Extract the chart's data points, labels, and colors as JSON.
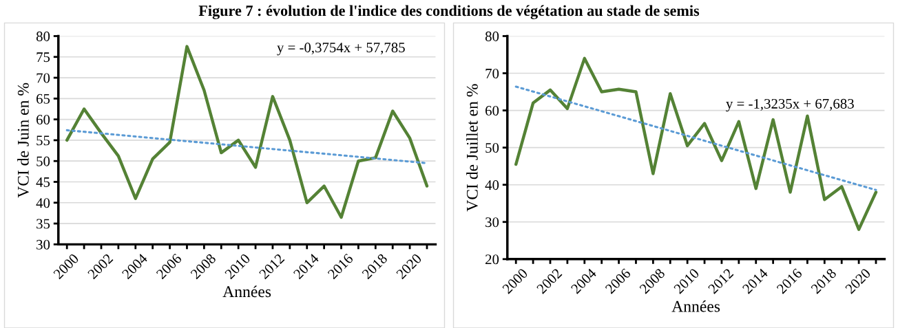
{
  "chart_data": [
    {
      "type": "line",
      "title": "Figure 7 : évolution de l'indice des conditions de végétation au stade de semis",
      "xlabel": "Années",
      "ylabel": "VCI de Juin en %",
      "categories": [
        "2000",
        null,
        "2002",
        null,
        "2004",
        null,
        "2006",
        null,
        "2008",
        null,
        "2010",
        null,
        "2012",
        null,
        "2014",
        null,
        "2016",
        null,
        "2018",
        null,
        "2020",
        null
      ],
      "series": [
        {
          "color": "#548235",
          "values": [
            55,
            62.5,
            56.7,
            51.2,
            41,
            50.5,
            54.5,
            77.5,
            67,
            52,
            55,
            48.5,
            65.5,
            55,
            40,
            44,
            36.5,
            50,
            50.8,
            62,
            55.5,
            44
          ]
        },
        {
          "type": "line",
          "color": "#5b9bd5",
          "line_style": "dotted",
          "values": [
            57.4,
            null,
            null,
            null,
            null,
            null,
            null,
            null,
            null,
            null,
            null,
            null,
            null,
            null,
            null,
            null,
            null,
            null,
            null,
            null,
            null,
            49.5
          ]
        }
      ],
      "ylim": [
        30,
        80
      ],
      "yticks": [
        30,
        35,
        40,
        45,
        50,
        55,
        60,
        65,
        70,
        75,
        80
      ],
      "grid": "y",
      "marker": "none",
      "line_style": "solid",
      "annotations": [
        "y = -0,3754x + 57,785"
      ]
    },
    {
      "type": "line",
      "xlabel": "Années",
      "ylabel": "VCI de Juillet en %",
      "categories": [
        "2000",
        null,
        "2002",
        null,
        "2004",
        null,
        "2006",
        null,
        "2008",
        null,
        "2010",
        null,
        "2012",
        null,
        "2014",
        null,
        "2016",
        null,
        "2018",
        null,
        "2020",
        null
      ],
      "series": [
        {
          "color": "#548235",
          "values": [
            45.5,
            62,
            65.5,
            60.5,
            74,
            65,
            65.7,
            65,
            43,
            64.5,
            50.5,
            56.5,
            46.5,
            57,
            39,
            57.5,
            38,
            58.5,
            36,
            39.5,
            28,
            38
          ]
        },
        {
          "type": "line",
          "color": "#5b9bd5",
          "line_style": "dotted",
          "values": [
            66.4,
            null,
            null,
            null,
            null,
            null,
            null,
            null,
            null,
            null,
            null,
            null,
            null,
            null,
            null,
            null,
            null,
            null,
            null,
            null,
            null,
            38.6
          ]
        }
      ],
      "ylim": [
        20,
        80
      ],
      "yticks": [
        20,
        30,
        40,
        50,
        60,
        70,
        80
      ],
      "grid": "y",
      "marker": "none",
      "line_style": "solid",
      "annotations": [
        "y = -1,3235x + 67,683"
      ]
    }
  ]
}
